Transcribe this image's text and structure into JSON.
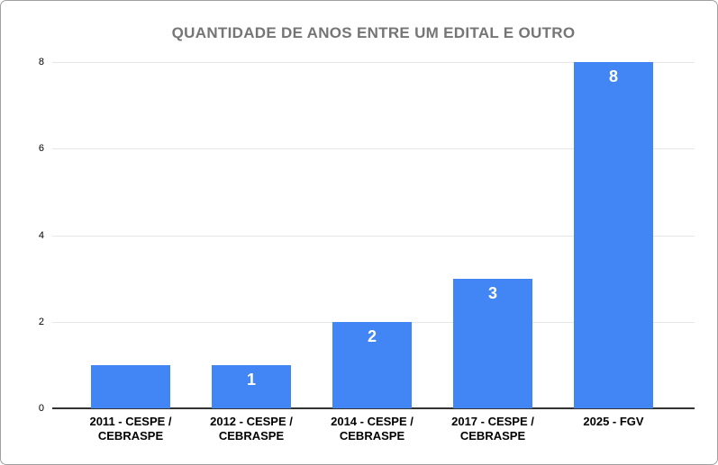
{
  "frame": {
    "background_color": "#ffffff",
    "border_color": "#a0a0a0"
  },
  "chart_data": {
    "type": "bar",
    "title": "QUANTIDADE DE ANOS ENTRE UM EDITAL E OUTRO",
    "categories": [
      "2011 - CESPE / CEBRASPE",
      "2012 - CESPE / CEBRASPE",
      "2014 - CESPE / CEBRASPE",
      "2017 - CESPE / CEBRASPE",
      "2025 - FGV"
    ],
    "category_lines": [
      [
        "2011 - CESPE /",
        "CEBRASPE"
      ],
      [
        "2012 - CESPE /",
        "CEBRASPE"
      ],
      [
        "2014 - CESPE /",
        "CEBRASPE"
      ],
      [
        "2017 - CESPE /",
        "CEBRASPE"
      ],
      [
        "2025 - FGV"
      ]
    ],
    "values": [
      1,
      1,
      2,
      3,
      8
    ],
    "bar_labels": [
      "",
      "1",
      "2",
      "3",
      "8"
    ],
    "xlabel": "",
    "ylabel": "",
    "ylim": [
      0,
      8
    ],
    "yticks": [
      0,
      2,
      4,
      6,
      8
    ],
    "grid": "horizontal",
    "legend": "none",
    "colors": {
      "bar": "#4285f4",
      "bar_label_text": "#ffffff",
      "title_text": "#757575",
      "axis_text": "#000000",
      "gridline": "#e6e6e6",
      "baseline": "#333333"
    }
  }
}
